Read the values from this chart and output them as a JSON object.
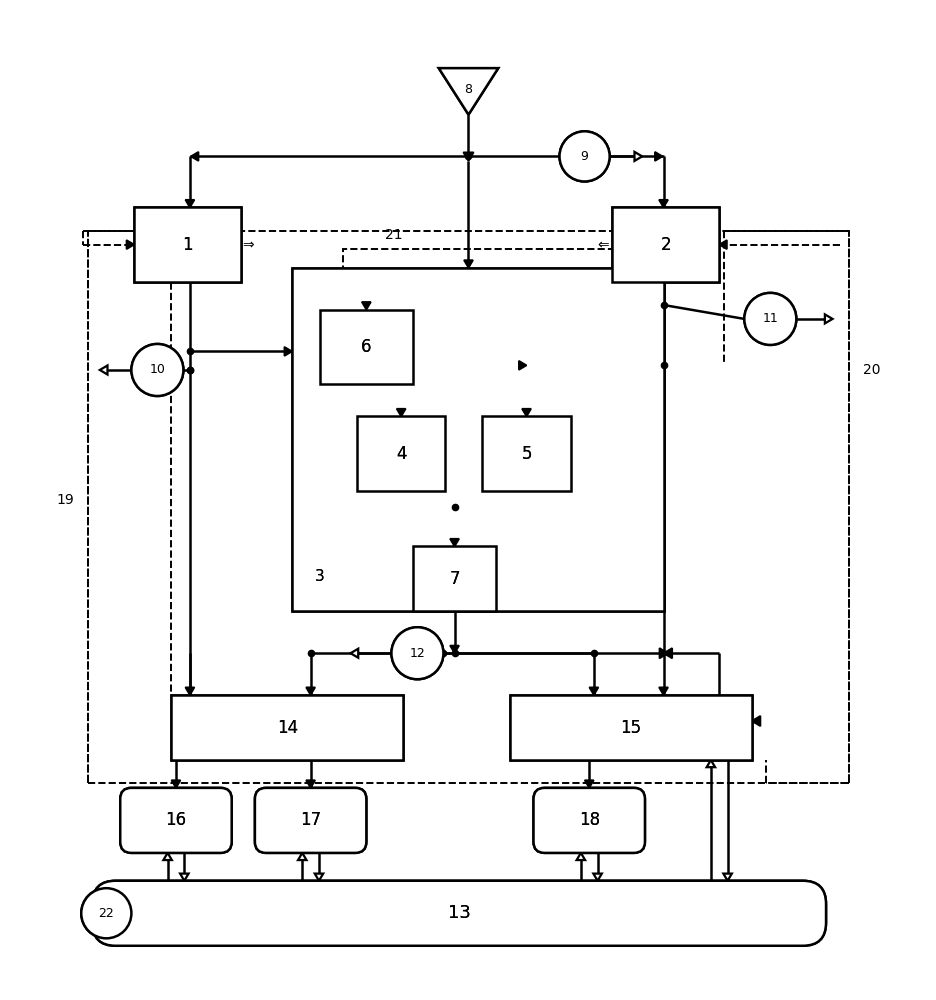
{
  "bg": "#ffffff",
  "lc": "#000000",
  "lw": 1.8,
  "fig_w": 9.37,
  "fig_h": 10.0,
  "dpi": 100
}
